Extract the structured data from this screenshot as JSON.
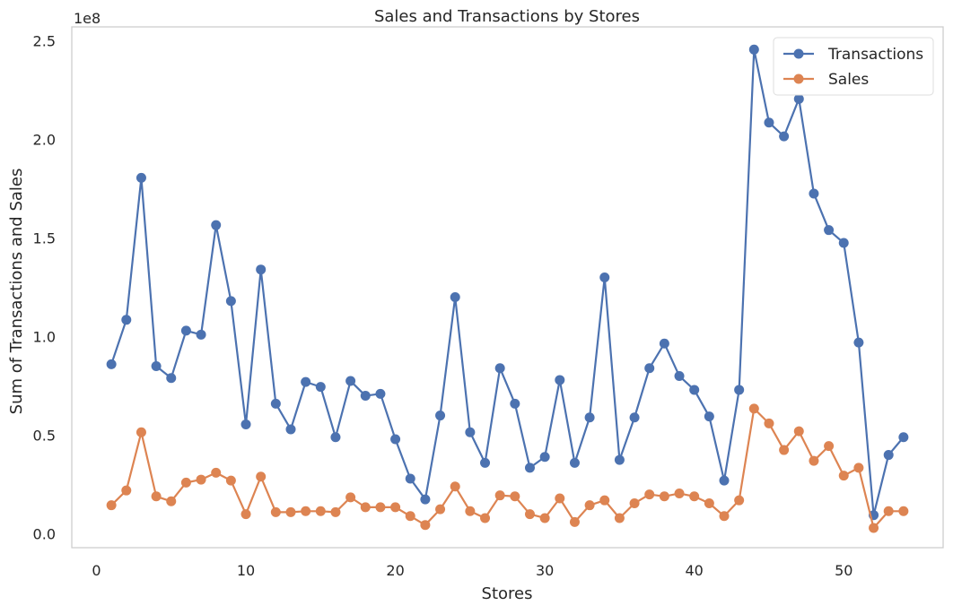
{
  "chart_data": {
    "type": "line",
    "title": "Sales and Transactions by Stores",
    "xlabel": "Stores",
    "ylabel": "Sum of Transactions and Sales",
    "offset_text": "1e8",
    "xlim": [
      -1.65,
      56.65
    ],
    "ylim": [
      -7000000,
      257000000
    ],
    "x_ticks": [
      0,
      10,
      20,
      30,
      40,
      50
    ],
    "y_ticks": [
      0,
      50000000,
      100000000,
      150000000,
      200000000,
      250000000
    ],
    "y_tick_labels": [
      "0.0",
      "0.5",
      "1.0",
      "1.5",
      "2.0",
      "2.5"
    ],
    "grid": false,
    "legend_position": "top-right",
    "x": [
      1,
      2,
      3,
      4,
      5,
      6,
      7,
      8,
      9,
      10,
      11,
      12,
      13,
      14,
      15,
      16,
      17,
      18,
      19,
      20,
      21,
      22,
      23,
      24,
      25,
      26,
      27,
      28,
      29,
      30,
      31,
      32,
      33,
      34,
      35,
      36,
      37,
      38,
      39,
      40,
      41,
      42,
      43,
      44,
      45,
      46,
      47,
      48,
      49,
      50,
      51,
      52,
      53,
      54
    ],
    "series": [
      {
        "name": "Transactions",
        "color": "#4c72b0",
        "values": [
          86000000,
          108500000,
          180500000,
          85000000,
          79000000,
          103000000,
          101000000,
          156500000,
          118000000,
          55500000,
          134000000,
          66000000,
          53000000,
          77000000,
          74500000,
          49000000,
          77500000,
          70000000,
          71000000,
          48000000,
          28000000,
          17500000,
          60000000,
          120000000,
          51500000,
          36000000,
          84000000,
          66000000,
          33500000,
          39000000,
          78000000,
          36000000,
          59000000,
          130000000,
          37500000,
          59000000,
          84000000,
          96500000,
          80000000,
          73000000,
          59500000,
          27000000,
          73000000,
          245500000,
          208500000,
          201500000,
          220500000,
          172500000,
          154000000,
          147500000,
          97000000,
          9500000,
          40000000,
          49000000
        ]
      },
      {
        "name": "Sales",
        "color": "#dd8452",
        "values": [
          14500000,
          22000000,
          51500000,
          19000000,
          16500000,
          26000000,
          27500000,
          31000000,
          27000000,
          10000000,
          29000000,
          11000000,
          11000000,
          11500000,
          11500000,
          11000000,
          18500000,
          13500000,
          13500000,
          13500000,
          9000000,
          4500000,
          12500000,
          24000000,
          11500000,
          8000000,
          19500000,
          19000000,
          10000000,
          8000000,
          18000000,
          6000000,
          14500000,
          17000000,
          8000000,
          15500000,
          20000000,
          19000000,
          20500000,
          19000000,
          15500000,
          9000000,
          17000000,
          63500000,
          56000000,
          42500000,
          52000000,
          37000000,
          44500000,
          29500000,
          33500000,
          3000000,
          11500000,
          11500000
        ]
      }
    ]
  }
}
